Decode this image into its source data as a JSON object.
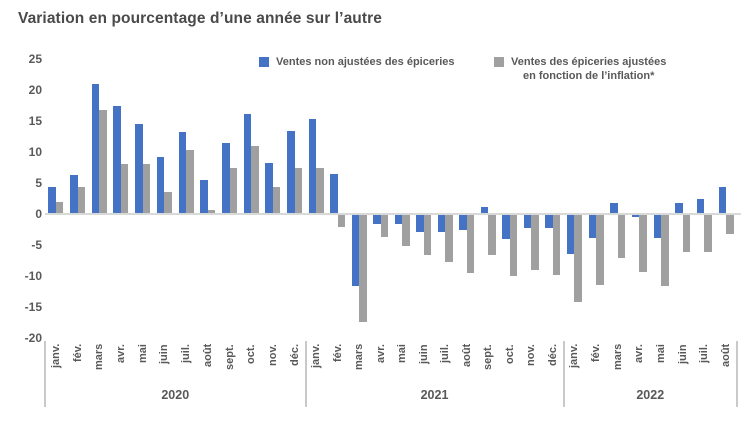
{
  "title": "Variation en pourcentage d’une année sur l’autre",
  "legend": {
    "items": [
      {
        "label": "Ventes non ajustées des épiceries",
        "color": "#4472C4"
      },
      {
        "label_line1": "Ventes des épiceries ajustées",
        "label_line2": "en fonction de l’inflation*",
        "color": "#A0A0A0"
      }
    ]
  },
  "chart_data": {
    "type": "bar",
    "title": "Variation en pourcentage d’une année sur l’autre",
    "ylim": [
      -20,
      25
    ],
    "yticks": [
      25,
      20,
      15,
      10,
      5,
      0,
      -5,
      -10,
      -15,
      -20
    ],
    "grid": false,
    "legend_position": "top-right",
    "year_groups": [
      {
        "year": "2020",
        "months": [
          "janv.",
          "fév.",
          "mars",
          "avr.",
          "mai",
          "juin",
          "juil.",
          "août",
          "sept.",
          "oct.",
          "nov.",
          "déc."
        ]
      },
      {
        "year": "2021",
        "months": [
          "janv.",
          "fév.",
          "mars",
          "avr.",
          "mai",
          "juin",
          "juil.",
          "août",
          "sept.",
          "oct.",
          "nov.",
          "déc."
        ]
      },
      {
        "year": "2022",
        "months": [
          "janv.",
          "fév.",
          "mars",
          "avr.",
          "mai",
          "juin",
          "juil.",
          "août"
        ]
      }
    ],
    "series": [
      {
        "name": "Ventes non ajustées des épiceries",
        "color": "#4472C4",
        "values": [
          4.4,
          6.3,
          20.9,
          17.4,
          14.5,
          9.2,
          13.2,
          5.5,
          11.4,
          16.2,
          8.3,
          13.4,
          15.4,
          6.5,
          -11.4,
          -1.5,
          -1.5,
          -2.8,
          -2.7,
          -2.4,
          1.1,
          -3.8,
          -2.1,
          -2.1,
          -6.3,
          -3.7,
          1.7,
          -0.4,
          -3.7,
          1.7,
          2.4,
          4.3
        ]
      },
      {
        "name": "Ventes des épiceries ajustées en fonction de l’inflation*",
        "color": "#A0A0A0",
        "values": [
          2.0,
          4.4,
          16.8,
          8.0,
          8.0,
          3.6,
          10.4,
          0.6,
          7.5,
          10.9,
          4.4,
          7.5,
          7.5,
          -2.0,
          -17.2,
          -3.5,
          -5.0,
          -6.5,
          -7.5,
          -9.4,
          -6.5,
          -9.8,
          -8.8,
          -9.7,
          -14.0,
          -11.3,
          -6.9,
          -9.2,
          -11.4,
          -5.9,
          -6.0,
          -3.0
        ]
      }
    ]
  }
}
